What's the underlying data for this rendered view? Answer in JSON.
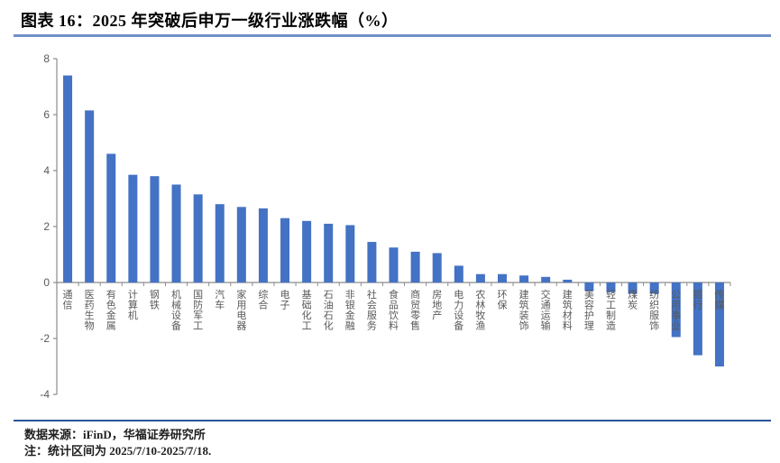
{
  "figure": {
    "title": "图表 16：2025 年突破后申万一级行业涨跌幅（%）",
    "source": "数据来源：iFinD，华福证券研究所",
    "note": "注：统计区间为 2025/7/10-2025/7/18."
  },
  "colors": {
    "bar": "#4472C4",
    "axis": "#8c8c8c",
    "tick_label": "#595959",
    "title_rule": "#7090C8",
    "footer_rule": "#2F5496"
  },
  "chart_data": {
    "type": "bar",
    "title": "2025 年突破后申万一级行业涨跌幅（%）",
    "xlabel": "",
    "ylabel": "",
    "ylim": [
      -4,
      8
    ],
    "yticks": [
      8,
      6,
      4,
      2,
      0,
      -2,
      -4
    ],
    "grid": false,
    "legend_position": "none",
    "categories": [
      "通信",
      "医药生物",
      "有色金属",
      "计算机",
      "钢铁",
      "机械设备",
      "国防军工",
      "汽车",
      "家用电器",
      "综合",
      "电子",
      "基础化工",
      "石油石化",
      "非银金融",
      "社会服务",
      "食品饮料",
      "商贸零售",
      "房地产",
      "电力设备",
      "农林牧渔",
      "环保",
      "建筑装饰",
      "交通运输",
      "建筑材料",
      "美容护理",
      "轻工制造",
      "煤炭",
      "纺织服饰",
      "公用事业",
      "银行",
      "传媒"
    ],
    "values": [
      7.4,
      6.15,
      4.6,
      3.85,
      3.8,
      3.5,
      3.15,
      2.8,
      2.7,
      2.65,
      2.3,
      2.2,
      2.1,
      2.05,
      1.45,
      1.25,
      1.1,
      1.05,
      0.6,
      0.3,
      0.3,
      0.25,
      0.2,
      0.1,
      -0.3,
      -0.35,
      -0.4,
      -0.4,
      -1.95,
      -2.6,
      -3.0
    ]
  }
}
